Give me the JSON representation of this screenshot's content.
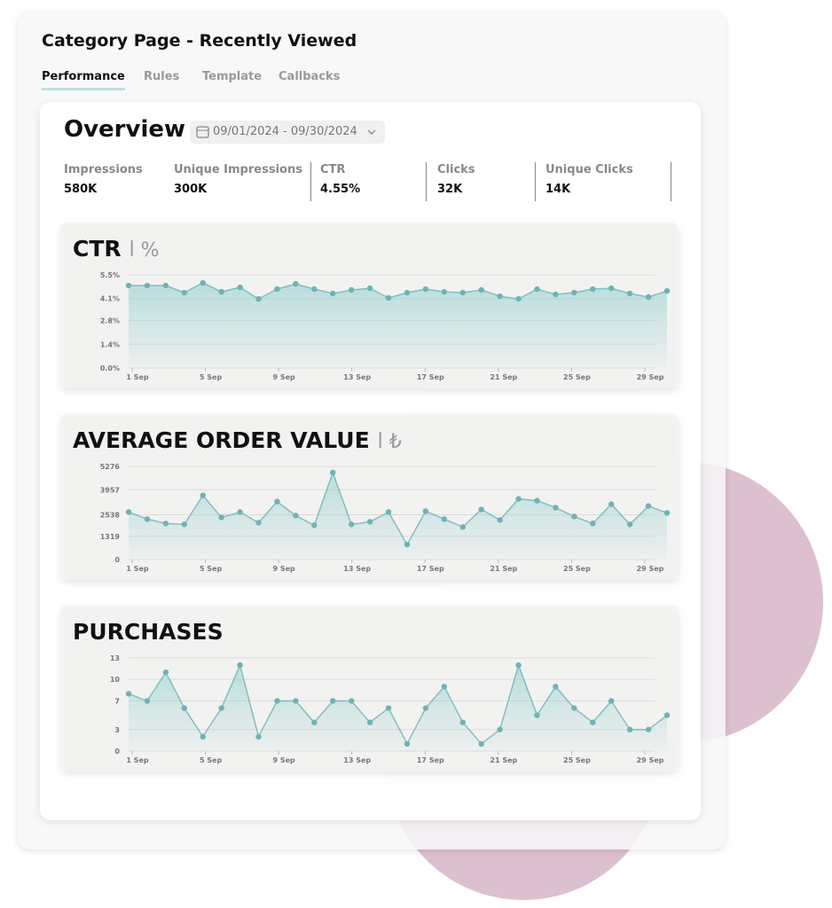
{
  "header": {
    "title": "Category Page - Recently Viewed",
    "tabs": [
      "Performance",
      "Rules",
      "Template",
      "Callbacks"
    ]
  },
  "overview": {
    "title": "Overview",
    "date_range": "09/01/2024 - 09/30/2024",
    "metrics": [
      {
        "label": "Impressions",
        "value": "580K"
      },
      {
        "label": "Unique Impressions",
        "value": "300K"
      },
      {
        "label": "CTR",
        "value": "4.55%"
      },
      {
        "label": "Clicks",
        "value": "32K"
      },
      {
        "label": "Unique Clicks",
        "value": "14K"
      }
    ]
  },
  "chart_data": [
    {
      "type": "line",
      "title": "CTR",
      "unit": "%",
      "color": "#6db3b6",
      "categories": [
        "1 Sep",
        null,
        null,
        null,
        "5 Sep",
        null,
        null,
        null,
        "9 Sep",
        null,
        null,
        null,
        "13 Sep",
        null,
        null,
        null,
        "17 Sep",
        null,
        null,
        null,
        "21 Sep",
        null,
        null,
        null,
        "25 Sep",
        null,
        null,
        null,
        "29 Sep",
        null
      ],
      "values": [
        4.87,
        4.87,
        4.87,
        4.45,
        5.03,
        4.5,
        4.76,
        4.08,
        4.66,
        4.97,
        4.66,
        4.4,
        4.61,
        4.71,
        4.14,
        4.45,
        4.66,
        4.5,
        4.45,
        4.61,
        4.24,
        4.08,
        4.66,
        4.35,
        4.45,
        4.66,
        4.71,
        4.4,
        4.19,
        4.55
      ],
      "ylim": [
        0,
        5.5
      ],
      "yticks": [
        {
          "value": 0,
          "label": "0.0%"
        },
        {
          "value": 1.4,
          "label": "1.4%"
        },
        {
          "value": 2.8,
          "label": "2.8%"
        },
        {
          "value": 4.1,
          "label": "4.1%"
        },
        {
          "value": 5.5,
          "label": "5.5%"
        }
      ],
      "grid": true
    },
    {
      "type": "line",
      "title": "AVERAGE ORDER VALUE",
      "unit": "₺",
      "color": "#6db3b6",
      "categories": [
        "1 Sep",
        null,
        null,
        null,
        "5 Sep",
        null,
        null,
        null,
        "9 Sep",
        null,
        null,
        null,
        "13 Sep",
        null,
        null,
        null,
        "17 Sep",
        null,
        null,
        null,
        "21 Sep",
        null,
        null,
        null,
        "25 Sep",
        null,
        null,
        null,
        "29 Sep",
        null
      ],
      "values": [
        2688,
        2290,
        2041,
        1991,
        3633,
        2389,
        2688,
        2090,
        3285,
        2489,
        1941,
        4928,
        1991,
        2140,
        2688,
        846,
        2738,
        2290,
        1842,
        2837,
        2240,
        3434,
        3335,
        2937,
        2439,
        2041,
        3136,
        1991,
        3036,
        2638
      ],
      "ylim": [
        0,
        5276
      ],
      "yticks": [
        0,
        1319,
        2538,
        3957,
        5276
      ],
      "grid": true
    },
    {
      "type": "line",
      "title": "PURCHASES",
      "color": "#6db3b6",
      "categories": [
        "1 Sep",
        null,
        null,
        null,
        "5 Sep",
        null,
        null,
        null,
        "9 Sep",
        null,
        null,
        null,
        "13 Sep",
        null,
        null,
        null,
        "17 Sep",
        null,
        null,
        null,
        "21 Sep",
        null,
        null,
        null,
        "25 Sep",
        null,
        null,
        null,
        "29 Sep",
        null
      ],
      "values": [
        8,
        7,
        11,
        6,
        2,
        6,
        12,
        2,
        7,
        7,
        4,
        7,
        7,
        4,
        6,
        1,
        6,
        9,
        4,
        1,
        3,
        12,
        5,
        9,
        6,
        4,
        7,
        3,
        3,
        5
      ],
      "ylim": [
        0,
        13
      ],
      "yticks": [
        0,
        3,
        7,
        10,
        13
      ],
      "grid": true
    }
  ]
}
